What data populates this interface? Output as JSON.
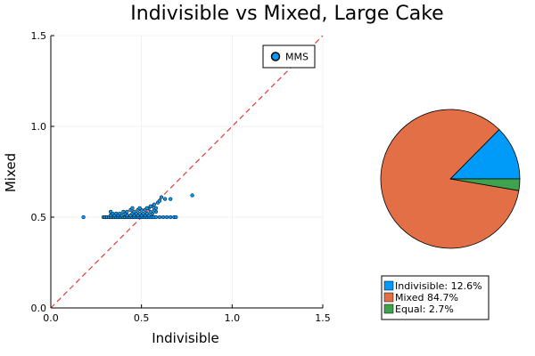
{
  "chart_data": [
    {
      "type": "scatter",
      "title": "Indivisible vs Mixed, Large Cake",
      "xlabel": "Indivisible",
      "ylabel": "Mixed",
      "xlim": [
        0,
        1.5
      ],
      "ylim": [
        0,
        1.5
      ],
      "x_ticks": [
        {
          "value": 0,
          "label": "0.0"
        },
        {
          "value": 0.5,
          "label": "0.5"
        },
        {
          "value": 1.0,
          "label": "1.0"
        },
        {
          "value": 1.5,
          "label": "1.5"
        }
      ],
      "y_ticks": [
        {
          "value": 0,
          "label": "0.0"
        },
        {
          "value": 0.5,
          "label": "0.5"
        },
        {
          "value": 1.0,
          "label": "1.0"
        },
        {
          "value": 1.5,
          "label": "1.5"
        }
      ],
      "grid": true,
      "legend_position": "top-right",
      "reference_line": {
        "x": [
          0,
          1.5
        ],
        "y": [
          0,
          1.5
        ],
        "color": "#e33b3b",
        "style": "dashed"
      },
      "series": [
        {
          "name": "MMS",
          "color": "#009af9",
          "x": [
            0.18,
            0.29,
            0.3,
            0.31,
            0.32,
            0.33,
            0.34,
            0.35,
            0.36,
            0.37,
            0.38,
            0.39,
            0.4,
            0.41,
            0.42,
            0.43,
            0.44,
            0.45,
            0.46,
            0.47,
            0.48,
            0.49,
            0.5,
            0.51,
            0.52,
            0.53,
            0.54,
            0.55,
            0.56,
            0.57,
            0.58,
            0.6,
            0.62,
            0.64,
            0.66,
            0.68,
            0.69,
            0.33,
            0.35,
            0.37,
            0.39,
            0.42,
            0.44,
            0.46,
            0.48,
            0.5,
            0.52,
            0.54,
            0.56,
            0.58,
            0.34,
            0.36,
            0.38,
            0.41,
            0.45,
            0.47,
            0.49,
            0.51,
            0.53,
            0.55,
            0.57,
            0.33,
            0.4,
            0.42,
            0.44,
            0.46,
            0.48,
            0.5,
            0.52,
            0.54,
            0.56,
            0.45,
            0.49,
            0.53,
            0.55,
            0.57,
            0.59,
            0.58,
            0.6,
            0.61,
            0.63,
            0.66,
            0.78
          ],
          "y": [
            0.5,
            0.5,
            0.5,
            0.5,
            0.5,
            0.5,
            0.5,
            0.5,
            0.5,
            0.5,
            0.5,
            0.5,
            0.5,
            0.5,
            0.5,
            0.5,
            0.5,
            0.5,
            0.5,
            0.5,
            0.5,
            0.5,
            0.5,
            0.5,
            0.5,
            0.5,
            0.5,
            0.5,
            0.5,
            0.5,
            0.5,
            0.5,
            0.5,
            0.5,
            0.5,
            0.5,
            0.5,
            0.51,
            0.51,
            0.51,
            0.51,
            0.51,
            0.51,
            0.51,
            0.51,
            0.51,
            0.51,
            0.51,
            0.52,
            0.53,
            0.52,
            0.52,
            0.52,
            0.52,
            0.52,
            0.52,
            0.52,
            0.52,
            0.52,
            0.53,
            0.54,
            0.53,
            0.53,
            0.53,
            0.54,
            0.53,
            0.54,
            0.54,
            0.54,
            0.55,
            0.56,
            0.55,
            0.55,
            0.55,
            0.56,
            0.57,
            0.58,
            0.55,
            0.59,
            0.61,
            0.6,
            0.6,
            0.62
          ]
        }
      ]
    },
    {
      "type": "pie",
      "legend_position": "bottom",
      "slices": [
        {
          "name": "Indivisible",
          "label": "Indivisible: 12.6%",
          "value": 12.6,
          "color": "#009af9"
        },
        {
          "name": "Mixed",
          "label": "Mixed 84.7%",
          "value": 84.7,
          "color": "#e26f46"
        },
        {
          "name": "Equal",
          "label": "Equal: 2.7%",
          "value": 2.7,
          "color": "#3da44d"
        }
      ]
    }
  ]
}
